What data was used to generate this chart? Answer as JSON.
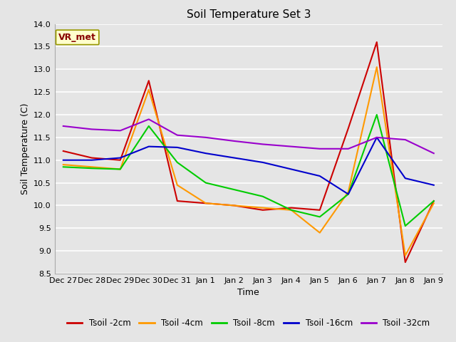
{
  "title": "Soil Temperature Set 3",
  "xlabel": "Time",
  "ylabel": "Soil Temperature (C)",
  "ylim": [
    8.5,
    14.0
  ],
  "yticks": [
    8.5,
    9.0,
    9.5,
    10.0,
    10.5,
    11.0,
    11.5,
    12.0,
    12.5,
    13.0,
    13.5,
    14.0
  ],
  "x_labels": [
    "Dec 27",
    "Dec 28",
    "Dec 29",
    "Dec 30",
    "Dec 31",
    "Jan 1",
    "Jan 2",
    "Jan 3",
    "Jan 4",
    "Jan 5",
    "Jan 6",
    "Jan 7",
    "Jan 8",
    "Jan 9"
  ],
  "annotation_text": "VR_met",
  "series": {
    "Tsoil -2cm": {
      "color": "#cc0000",
      "values": [
        11.2,
        11.05,
        11.0,
        12.75,
        10.1,
        10.05,
        10.0,
        9.9,
        9.95,
        9.9,
        11.7,
        13.6,
        8.75,
        10.1
      ]
    },
    "Tsoil -4cm": {
      "color": "#ff9900",
      "values": [
        10.9,
        10.85,
        10.8,
        12.55,
        10.45,
        10.05,
        10.0,
        9.95,
        9.9,
        9.4,
        10.3,
        13.05,
        8.9,
        10.05
      ]
    },
    "Tsoil -8cm": {
      "color": "#00cc00",
      "values": [
        10.85,
        10.82,
        10.8,
        11.75,
        10.95,
        10.5,
        10.35,
        10.2,
        9.9,
        9.75,
        10.25,
        12.0,
        9.55,
        10.1
      ]
    },
    "Tsoil -16cm": {
      "color": "#0000cc",
      "values": [
        11.0,
        11.0,
        11.05,
        11.3,
        11.28,
        11.15,
        11.05,
        10.95,
        10.8,
        10.65,
        10.25,
        11.5,
        10.6,
        10.45
      ]
    },
    "Tsoil -32cm": {
      "color": "#9900cc",
      "values": [
        11.75,
        11.68,
        11.65,
        11.9,
        11.55,
        11.5,
        11.42,
        11.35,
        11.3,
        11.25,
        11.25,
        11.5,
        11.45,
        11.15
      ]
    }
  },
  "background_color": "#e5e5e5",
  "plot_bg_color": "#e5e5e5",
  "grid_color": "#ffffff",
  "figsize": [
    6.4,
    4.8
  ],
  "dpi": 100
}
